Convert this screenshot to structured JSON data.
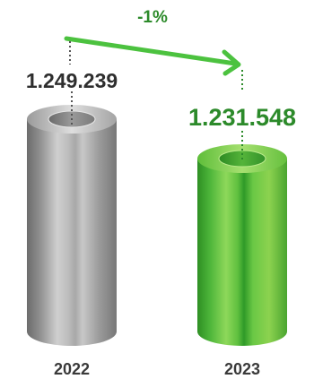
{
  "chart_data": {
    "type": "bar",
    "title": "",
    "xlabel": "",
    "ylabel": "",
    "categories": [
      "2022",
      "2023"
    ],
    "values": [
      1249239,
      1231548
    ],
    "value_labels": [
      "1.249.239",
      "1.231.548"
    ],
    "change_label": "-1%",
    "grid": false,
    "legend": "none"
  },
  "colors": {
    "gray_cylinder": "#9a9a9a",
    "green_cylinder": "#3aa82f",
    "value_2022_text": "#2e2e2e",
    "value_2023_text": "#2c8a2a",
    "change_text": "#2c8a2a",
    "arrow": "#4cc23f",
    "category_text": "#3a3a3a"
  }
}
